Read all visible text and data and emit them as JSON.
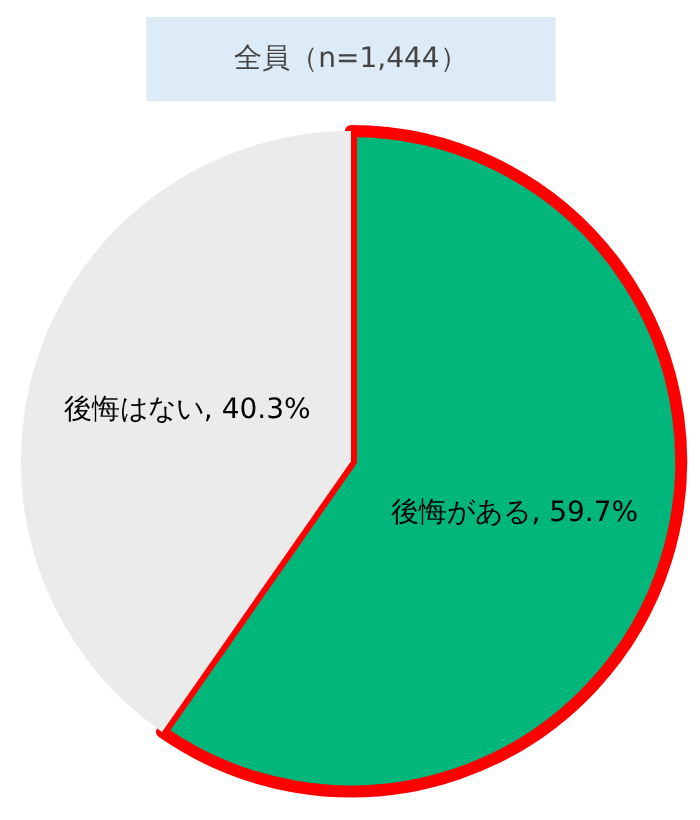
{
  "chart_data": {
    "type": "pie",
    "title": "全員（n=1,444）",
    "categories": [
      "後悔がある",
      "後悔はない"
    ],
    "values": [
      59.7,
      40.3
    ],
    "colors": [
      "#00b67a",
      "#ebebeb"
    ],
    "value_labels": [
      "59.7%",
      "40.3%"
    ]
  }
}
